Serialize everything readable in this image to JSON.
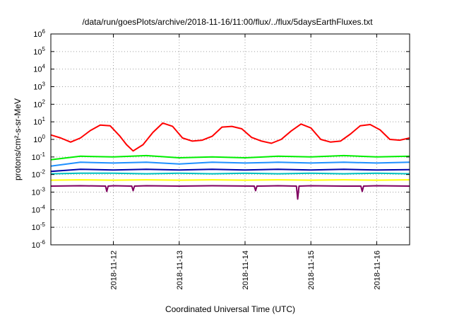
{
  "chart_data": {
    "type": "line",
    "title": "/data/run/goesPlots/archive/2018-11-16/11:00/flux/../flux/5daysEarthFluxes.txt",
    "xlabel": "Coordinated Universal Time (UTC)",
    "ylabel": "protons/cm²-s-sr-MeV",
    "yscale": "log",
    "ylim": [
      1e-06,
      1000000.0
    ],
    "xlim": [
      11.05,
      16.5
    ],
    "x_unit": "day of November 2018",
    "x_ticks": [
      {
        "x": 12,
        "label": "2018-11-12"
      },
      {
        "x": 13,
        "label": "2018-11-13"
      },
      {
        "x": 14,
        "label": "2018-11-14"
      },
      {
        "x": 15,
        "label": "2018-11-15"
      },
      {
        "x": 16,
        "label": "2018-11-16"
      }
    ],
    "y_ticks": [
      {
        "exp": 6,
        "label": "10",
        "sup": "6"
      },
      {
        "exp": 5,
        "label": "10",
        "sup": "5"
      },
      {
        "exp": 4,
        "label": "10",
        "sup": "4"
      },
      {
        "exp": 3,
        "label": "10",
        "sup": "3"
      },
      {
        "exp": 2,
        "label": "10",
        "sup": "2"
      },
      {
        "exp": 1,
        "label": "10",
        "sup": "1"
      },
      {
        "exp": 0,
        "label": "10",
        "sup": "0"
      },
      {
        "exp": -1,
        "label": "10",
        "sup": "-1"
      },
      {
        "exp": -2,
        "label": "10",
        "sup": "-2"
      },
      {
        "exp": -3,
        "label": "10",
        "sup": "-3"
      },
      {
        "exp": -4,
        "label": "10",
        "sup": "-4"
      },
      {
        "exp": -5,
        "label": "10",
        "sup": "-5"
      },
      {
        "exp": -6,
        "label": "10",
        "sup": "-6"
      }
    ],
    "grid": true,
    "legend": "none",
    "series": [
      {
        "color": "#ff0000",
        "x": [
          11.05,
          11.2,
          11.35,
          11.5,
          11.65,
          11.8,
          11.95,
          12.1,
          12.2,
          12.3,
          12.45,
          12.6,
          12.75,
          12.9,
          13.05,
          13.2,
          13.35,
          13.5,
          13.65,
          13.8,
          13.95,
          14.1,
          14.25,
          14.4,
          14.55,
          14.7,
          14.85,
          15.0,
          15.15,
          15.3,
          15.45,
          15.6,
          15.75,
          15.9,
          16.05,
          16.2,
          16.35,
          16.5
        ],
        "y": [
          1.8,
          1.2,
          0.7,
          1.2,
          3.2,
          6.5,
          6.0,
          1.5,
          0.5,
          0.22,
          0.5,
          2.5,
          8.5,
          5.5,
          1.2,
          0.8,
          0.9,
          1.5,
          5.0,
          5.5,
          4.0,
          1.3,
          0.8,
          0.6,
          1.0,
          3.0,
          7.5,
          4.5,
          1.0,
          0.7,
          0.8,
          2.0,
          6.0,
          7.0,
          3.5,
          1.0,
          0.9,
          1.2
        ]
      },
      {
        "color": "#00ee00",
        "x": [
          11.05,
          11.5,
          12.0,
          12.5,
          13.0,
          13.5,
          14.0,
          14.5,
          15.0,
          15.5,
          16.0,
          16.5
        ],
        "y": [
          0.07,
          0.11,
          0.1,
          0.12,
          0.09,
          0.1,
          0.09,
          0.11,
          0.1,
          0.12,
          0.1,
          0.11
        ]
      },
      {
        "color": "#1e90ff",
        "x": [
          11.05,
          11.5,
          12.0,
          12.5,
          13.0,
          13.5,
          14.0,
          14.5,
          15.0,
          15.5,
          16.0,
          16.5
        ],
        "y": [
          0.03,
          0.05,
          0.045,
          0.05,
          0.04,
          0.05,
          0.045,
          0.05,
          0.045,
          0.05,
          0.045,
          0.05
        ]
      },
      {
        "color": "#0000aa",
        "x": [
          11.05,
          11.5,
          12.0,
          12.5,
          13.0,
          13.5,
          14.0,
          14.5,
          15.0,
          15.5,
          16.0,
          16.5
        ],
        "y": [
          0.015,
          0.02,
          0.018,
          0.02,
          0.018,
          0.02,
          0.018,
          0.02,
          0.018,
          0.02,
          0.018,
          0.019
        ]
      },
      {
        "color": "#00c0c0",
        "x": [
          11.05,
          11.5,
          12.0,
          12.5,
          13.0,
          13.5,
          14.0,
          14.5,
          15.0,
          15.5,
          16.0,
          16.5
        ],
        "y": [
          0.011,
          0.012,
          0.012,
          0.011,
          0.012,
          0.011,
          0.012,
          0.011,
          0.012,
          0.011,
          0.012,
          0.011
        ]
      },
      {
        "color": "#ffff00",
        "x": [
          11.05,
          11.5,
          12.0,
          12.5,
          13.0,
          13.5,
          14.0,
          14.5,
          15.0,
          15.5,
          16.0,
          16.5
        ],
        "y": [
          0.0048,
          0.005,
          0.0048,
          0.005,
          0.0048,
          0.005,
          0.0048,
          0.005,
          0.0048,
          0.005,
          0.0048,
          0.005
        ]
      },
      {
        "color": "#800060",
        "x": [
          11.05,
          11.5,
          11.88,
          11.9,
          11.92,
          12.0,
          12.28,
          12.3,
          12.32,
          12.5,
          13.0,
          13.5,
          14.14,
          14.16,
          14.18,
          14.5,
          14.78,
          14.8,
          14.82,
          15.0,
          15.5,
          15.76,
          15.78,
          15.8,
          16.0,
          16.5
        ],
        "y": [
          0.0022,
          0.0023,
          0.0022,
          0.0011,
          0.0022,
          0.0023,
          0.0022,
          0.0012,
          0.0022,
          0.0023,
          0.0022,
          0.0023,
          0.0022,
          0.0012,
          0.0022,
          0.0023,
          0.0022,
          0.0004,
          0.0022,
          0.0023,
          0.0022,
          0.0022,
          0.0011,
          0.0022,
          0.0023,
          0.0022
        ]
      }
    ]
  }
}
